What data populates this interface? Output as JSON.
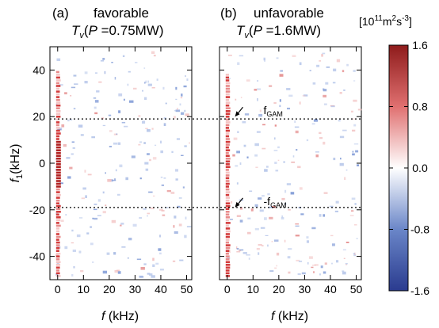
{
  "chart_data": [
    {
      "type": "heatmap",
      "panel_label": "(a)",
      "title_line1": "favorable",
      "title_var": "T",
      "title_sub": "v",
      "title_paren_open": "(",
      "title_p": "P",
      "title_value": " =0.75MW)",
      "xlabel_var": "f",
      "xlabel_unit": " (kHz)",
      "ylabel_var": "f",
      "ylabel_sub": "1",
      "ylabel_unit": "(kHz)",
      "xlim": [
        -3,
        52
      ],
      "ylim": [
        -50,
        50
      ],
      "xticks": [
        0,
        10,
        20,
        30,
        40,
        50
      ],
      "yticks": [
        40,
        20,
        0,
        -20,
        -40
      ],
      "reference_lines_y": [
        19,
        -19
      ],
      "features": [
        {
          "x": 0,
          "y_range": [
            -48,
            40
          ],
          "sign": "positive",
          "description_hidden": true
        }
      ]
    },
    {
      "type": "heatmap",
      "panel_label": "(b)",
      "title_line1": "unfavorable",
      "title_var": "T",
      "title_sub": "v",
      "title_paren_open": "(",
      "title_p": "P",
      "title_value": " =1.6MW)",
      "xlabel_var": "f",
      "xlabel_unit": " (kHz)",
      "xlim": [
        -3,
        52
      ],
      "ylim": [
        -50,
        50
      ],
      "xticks": [
        0,
        10,
        20,
        30,
        40,
        50
      ],
      "reference_lines_y": [
        19,
        -19
      ],
      "annotations": [
        {
          "text_main": "f",
          "text_sub": "GAM",
          "x": 3,
          "y": 20
        },
        {
          "text_main": "-f",
          "text_sub": "GAM",
          "x": 3,
          "y": -19
        }
      ]
    }
  ],
  "colorbar": {
    "unit_prefix": "[10",
    "unit_exp1": "11",
    "unit_mid": "m",
    "unit_exp2": "2",
    "unit_mid2": "s",
    "unit_exp3": "-3",
    "unit_suffix": "]",
    "range": [
      -1.6,
      1.6
    ],
    "tick_labels": [
      "1.6",
      "0.8",
      "0.0",
      "-0.8",
      "-1.6"
    ],
    "tick_values": [
      1.6,
      0.8,
      0.0,
      -0.8,
      -1.6
    ],
    "colors": [
      "#2a3b8f",
      "#6a86c8",
      "#ffffff",
      "#e07070",
      "#8e1b1b"
    ]
  }
}
